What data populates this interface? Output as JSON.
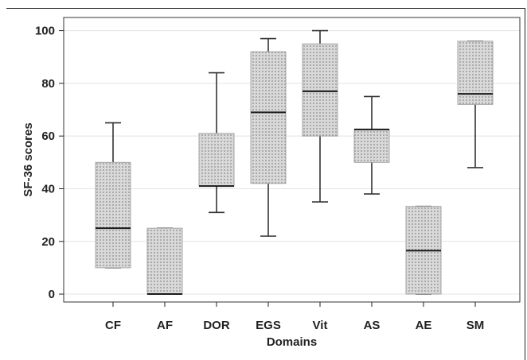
{
  "chart_data": {
    "type": "box",
    "title": "",
    "xlabel": "Domains",
    "ylabel": "SF-36 scores",
    "ylim": [
      -3,
      105
    ],
    "yticks": [
      0,
      20,
      40,
      60,
      80,
      100
    ],
    "grid": "horizontal",
    "categories": [
      "CF",
      "AF",
      "DOR",
      "EGS",
      "Vit",
      "AS",
      "AE",
      "SM"
    ],
    "boxes": [
      {
        "category": "CF",
        "min": 10,
        "q1": 10,
        "median": 25,
        "q3": 50,
        "max": 65
      },
      {
        "category": "AF",
        "min": 0,
        "q1": 0,
        "median": 0,
        "q3": 25,
        "max": 25
      },
      {
        "category": "DOR",
        "min": 31,
        "q1": 41,
        "median": 41,
        "q3": 61,
        "max": 84
      },
      {
        "category": "EGS",
        "min": 22,
        "q1": 42,
        "median": 69,
        "q3": 92,
        "max": 97
      },
      {
        "category": "Vit",
        "min": 35,
        "q1": 60,
        "median": 77,
        "q3": 95,
        "max": 100
      },
      {
        "category": "AS",
        "min": 38,
        "q1": 50,
        "median": 62.5,
        "q3": 62.5,
        "max": 75
      },
      {
        "category": "AE",
        "min": 0,
        "q1": 0,
        "median": 16.5,
        "q3": 33.3,
        "max": 33.3
      },
      {
        "category": "SM",
        "min": 48,
        "q1": 72,
        "median": 76,
        "q3": 96,
        "max": 96
      }
    ],
    "colors": {
      "box_fill": "#d9d9d9",
      "box_dot": "#8a8a8a",
      "box_border": "#a6a6a6",
      "median": "#1a1a1a",
      "whisker": "#333333",
      "grid": "#e3e3e3",
      "axis": "#222222"
    }
  }
}
